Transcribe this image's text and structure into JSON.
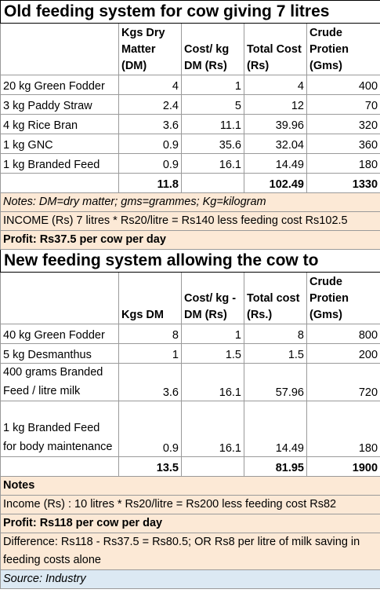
{
  "old": {
    "title": "Old feeding system for cow giving 7 litres",
    "headers": [
      "",
      "Kgs Dry Matter (DM)",
      "Cost/ kg DM (Rs)",
      "Total Cost (Rs)",
      "Crude Protien (Gms)"
    ],
    "rows": [
      [
        "20 kg Green Fodder",
        "4",
        "1",
        "4",
        "400"
      ],
      [
        "3 kg Paddy Straw",
        "2.4",
        "5",
        "12",
        "70"
      ],
      [
        "4 kg Rice Bran",
        "3.6",
        "11.1",
        "39.96",
        "320"
      ],
      [
        "1 kg GNC",
        "0.9",
        "35.6",
        "32.04",
        "360"
      ],
      [
        "1 kg Branded Feed",
        "0.9",
        "16.1",
        "14.49",
        "180"
      ]
    ],
    "totals": [
      "",
      "11.8",
      "",
      "102.49",
      "1330"
    ],
    "notes": "Notes:  DM=dry matter; gms=grammes; Kg=kilogram",
    "income": "INCOME (Rs) 7 litres * Rs20/litre = Rs140 less feeding cost Rs102.5",
    "profit": "Profit: Rs37.5 per cow per day"
  },
  "new": {
    "title": "New feeding system allowing the cow to",
    "headers": [
      "",
      "Kgs DM",
      "Cost/ kg - DM (Rs)",
      "Total cost (Rs.)",
      "Crude Protien (Gms)"
    ],
    "rows": [
      [
        "40 kg Green Fodder",
        "8",
        "1",
        "8",
        "800"
      ],
      [
        "5 kg Desmanthus",
        "1",
        "1.5",
        "1.5",
        "200"
      ],
      [
        "400 grams Branded Feed / litre milk",
        "3.6",
        "16.1",
        "57.96",
        "720"
      ],
      [
        "1 kg Branded Feed for body maintenance",
        "0.9",
        "16.1",
        "14.49",
        "180"
      ]
    ],
    "totals": [
      "",
      "13.5",
      "",
      "81.95",
      "1900"
    ],
    "notes": "Notes",
    "income": "Income (Rs) : 10 litres * Rs20/litre = Rs200 less feeding cost Rs82",
    "profit": "Profit: Rs118 per cow per day",
    "difference": "Difference: Rs118 - Rs37.5 = Rs80.5; OR Rs8 per litre of milk saving in feeding costs alone",
    "source": "Source: Industry"
  }
}
